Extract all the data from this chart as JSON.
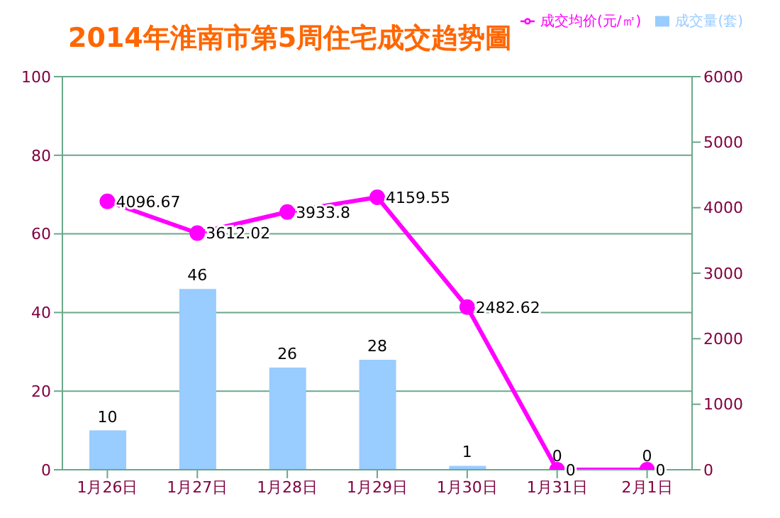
{
  "chart_data": {
    "type": "bar",
    "title": "2014年淮南市第5周住宅成交趋势圖",
    "categories": [
      "1月26日",
      "1月27日",
      "1月28日",
      "1月29日",
      "1月30日",
      "1月31日",
      "2月1日"
    ],
    "series": [
      {
        "name": "成交量(套)",
        "color": "#99ccff",
        "values": [
          10,
          46,
          26,
          28,
          1,
          0,
          0
        ]
      },
      {
        "name": "成交均价(元/㎡)",
        "type": "line",
        "axis": "y2",
        "color": "#ff00ff",
        "marker": "circle",
        "values": [
          4096.67,
          3612.02,
          3933.8,
          4159.55,
          2482.62,
          0,
          0
        ]
      }
    ],
    "ylim": [
      0,
      100
    ],
    "yticks": [
      0,
      20,
      40,
      60,
      80,
      100
    ],
    "y2lim": [
      0,
      6000
    ],
    "y2ticks": [
      0,
      1000,
      2000,
      3000,
      4000,
      5000,
      6000
    ],
    "grid": "y",
    "legend": "top right",
    "data_labels": true
  }
}
